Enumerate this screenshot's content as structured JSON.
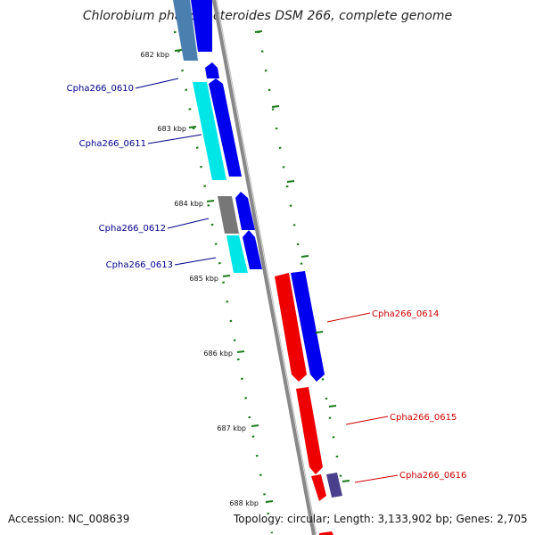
{
  "title": "Chlorobium phaeobacteroides DSM 266, complete genome",
  "footer": {
    "accession": "Accession: NC_008639",
    "summary": "Topology: circular; Length: 3,133,902 bp; Genes: 2,705"
  },
  "colors": {
    "backbone": "#888888",
    "tick": "#1a7a1a",
    "forward_cds": "#0000ee",
    "reverse_cds": "#ee0000",
    "label_left": "#00008b",
    "label_right": "#cc0000",
    "gene_cyan": "#00e5e5",
    "gene_steel": "#4a7fb0",
    "gene_gray": "#777777",
    "gene_slate": "#4a3f8c"
  },
  "ticks": [
    {
      "label": "682 kbp"
    },
    {
      "label": "683 kbp"
    },
    {
      "label": "684 kbp"
    },
    {
      "label": "685 kbp"
    },
    {
      "label": "686 kbp"
    },
    {
      "label": "687 kbp"
    },
    {
      "label": "688 kbp"
    }
  ],
  "genes_left": [
    {
      "label": "Cpha266_0610"
    },
    {
      "label": "Cpha266_0611"
    },
    {
      "label": "Cpha266_0612"
    },
    {
      "label": "Cpha266_0613"
    }
  ],
  "genes_right": [
    {
      "label": "Cpha266_0614"
    },
    {
      "label": "Cpha266_0615"
    },
    {
      "label": "Cpha266_0616"
    }
  ]
}
